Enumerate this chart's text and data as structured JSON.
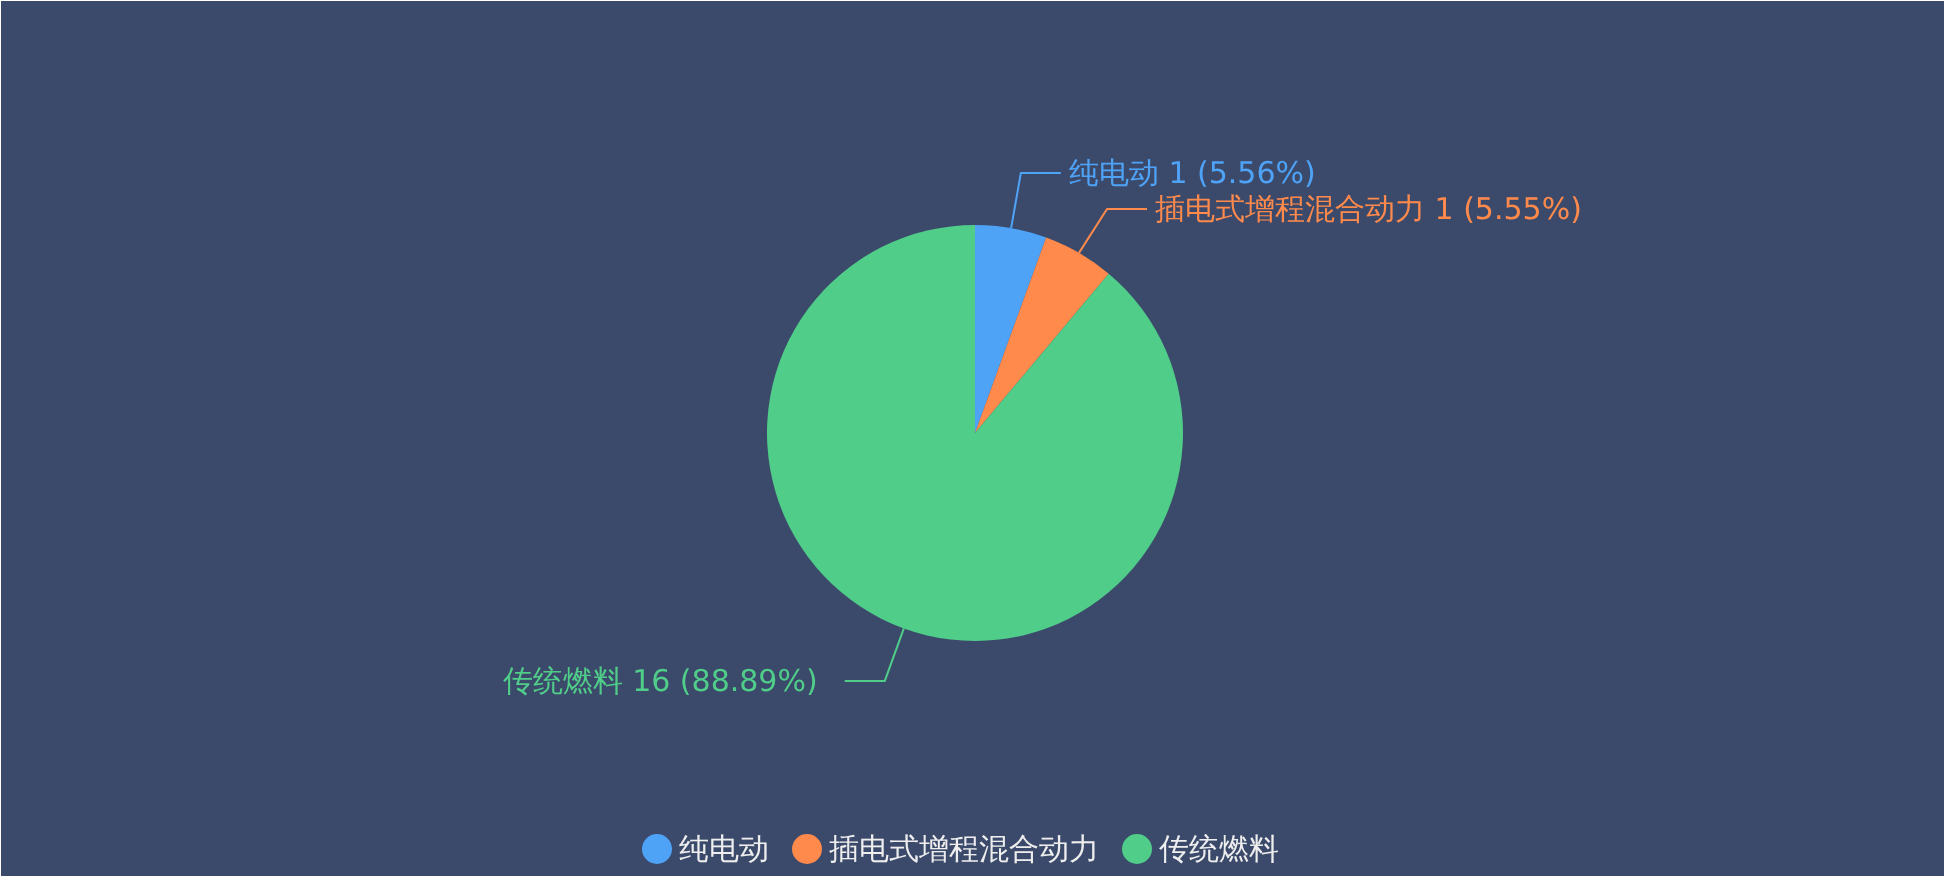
{
  "chart_data": {
    "type": "pie",
    "categories": [
      "纯电动",
      "插电式增程混合动力",
      "传统燃料"
    ],
    "values": [
      1,
      1,
      16
    ],
    "colors": [
      "#4fa3f7",
      "#ff8a4c",
      "#50cd89"
    ],
    "value_labels": [
      "1   (5.56%)",
      "1   (5.55%)",
      "16   (88.89%)"
    ],
    "legend": "bottom"
  }
}
